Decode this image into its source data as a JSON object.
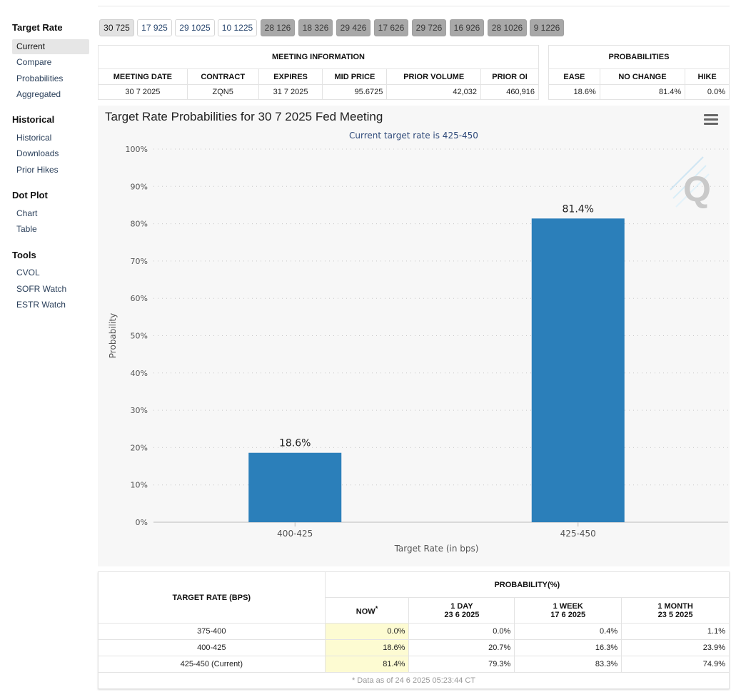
{
  "sidebar": {
    "sections": [
      {
        "title": "Target Rate",
        "items": [
          "Current",
          "Compare",
          "Probabilities",
          "Aggregated"
        ]
      },
      {
        "title": "Historical",
        "items": [
          "Historical",
          "Downloads",
          "Prior Hikes"
        ]
      },
      {
        "title": "Dot Plot",
        "items": [
          "Chart",
          "Table"
        ]
      },
      {
        "title": "Tools",
        "items": [
          "CVOL",
          "SOFR Watch",
          "ESTR Watch"
        ]
      }
    ],
    "active_item": "Current"
  },
  "tabs": [
    "30 725",
    "17 925",
    "29 1025",
    "10 1225",
    "28 126",
    "18 326",
    "29 426",
    "17 626",
    "29 726",
    "16 926",
    "28 1026",
    "9 1226"
  ],
  "meeting_info": {
    "caption": "MEETING INFORMATION",
    "headers": [
      "MEETING DATE",
      "CONTRACT",
      "EXPIRES",
      "MID PRICE",
      "PRIOR VOLUME",
      "PRIOR OI"
    ],
    "row": [
      "30 7 2025",
      "ZQN5",
      "31 7 2025",
      "95.6725",
      "42,032",
      "460,916"
    ]
  },
  "probabilities": {
    "caption": "PROBABILITIES",
    "headers": [
      "EASE",
      "NO CHANGE",
      "HIKE"
    ],
    "row": [
      "18.6%",
      "81.4%",
      "0.0%"
    ]
  },
  "chart": {
    "title": "Target Rate Probabilities for 30 7 2025 Fed Meeting",
    "subtitle": "Current target rate is 425-450",
    "watermark": "Q"
  },
  "chart_data": {
    "type": "bar",
    "title": "Target Rate Probabilities for 30 7 2025 Fed Meeting",
    "subtitle": "Current target rate is 425-450",
    "categories": [
      "400-425",
      "425-450"
    ],
    "values": [
      18.6,
      81.4
    ],
    "data_labels": [
      "18.6%",
      "81.4%"
    ],
    "xlabel": "Target Rate (in bps)",
    "ylabel": "Probability",
    "ylim": [
      0,
      100
    ],
    "yticks": [
      "0%",
      "10%",
      "20%",
      "30%",
      "40%",
      "50%",
      "60%",
      "70%",
      "80%",
      "90%",
      "100%"
    ],
    "grid": true,
    "legend": "none",
    "bar_color": "#2b7fba"
  },
  "target_table": {
    "rate_header": "TARGET RATE (BPS)",
    "prob_header": "PROBABILITY(%)",
    "cols": [
      {
        "label": "NOW",
        "marker": "*",
        "date": ""
      },
      {
        "label": "1 DAY",
        "date": "23 6 2025"
      },
      {
        "label": "1 WEEK",
        "date": "17 6 2025"
      },
      {
        "label": "1 MONTH",
        "date": "23 5 2025"
      }
    ],
    "rows": [
      {
        "rate": "375-400",
        "values": [
          "0.0%",
          "0.0%",
          "0.4%",
          "1.1%"
        ]
      },
      {
        "rate": "400-425",
        "values": [
          "18.6%",
          "20.7%",
          "16.3%",
          "23.9%"
        ]
      },
      {
        "rate": "425-450 (Current)",
        "values": [
          "81.4%",
          "79.3%",
          "83.3%",
          "74.9%"
        ]
      }
    ],
    "footnote": "* Data as of 24 6 2025 05:23:44 CT"
  }
}
